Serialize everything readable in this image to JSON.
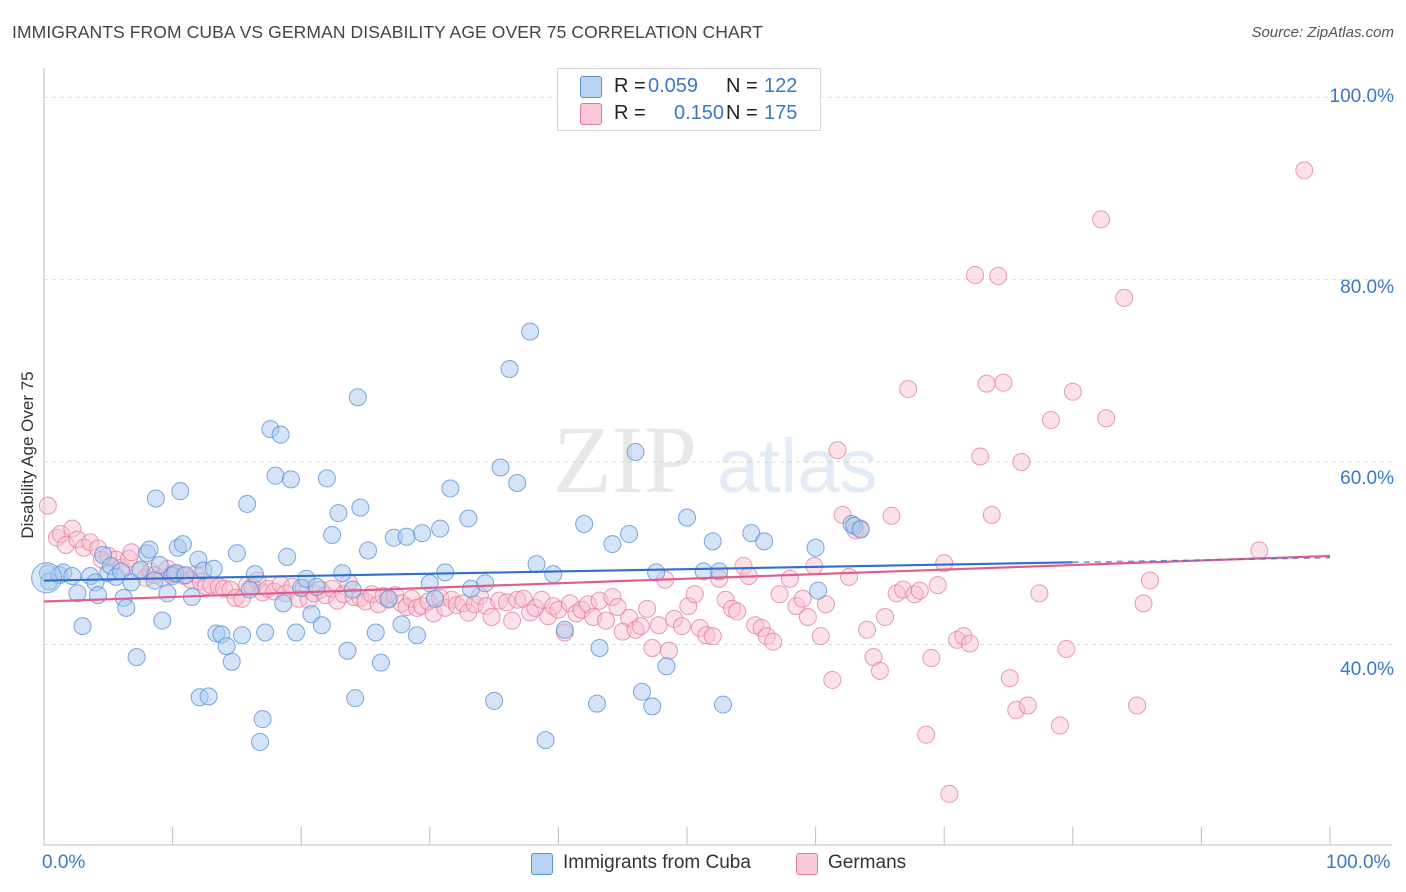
{
  "title": "IMMIGRANTS FROM CUBA VS GERMAN DISABILITY AGE OVER 75 CORRELATION CHART",
  "source": "Source: ZipAtlas.com",
  "watermark": {
    "zip": "ZIP",
    "atlas": "atlas"
  },
  "colors": {
    "blue_fill": "#a9c9ee",
    "blue_stroke": "#5b92d8",
    "blue_line": "#2f6fcf",
    "pink_fill": "#f7bfcf",
    "pink_stroke": "#e6799a",
    "pink_line": "#e05d8c",
    "grid": "#dcdcdc",
    "tick_label": "#3a78c9"
  },
  "legend": {
    "series": [
      {
        "r_label": "R =",
        "r_value": "0.059",
        "n_label": "N =",
        "n_value": "122"
      },
      {
        "r_label": "R =",
        "r_value": "0.150",
        "n_label": "N =",
        "n_value": "175"
      }
    ]
  },
  "bottom_legend": {
    "cuba": "Immigrants from Cuba",
    "germans": "Germans"
  },
  "chart_data": {
    "type": "scatter",
    "title": "IMMIGRANTS FROM CUBA VS GERMAN DISABILITY AGE OVER 75 CORRELATION CHART",
    "ylabel": "Disability Age Over 75",
    "xlabel": "",
    "x_tick_labels": [
      "0.0%",
      "100.0%"
    ],
    "y_tick_labels": [
      "100.0%",
      "80.0%",
      "60.0%",
      "40.0%"
    ],
    "xlim": [
      0,
      100
    ],
    "ylim": [
      18,
      102
    ],
    "grid": true,
    "legend_position": "top-center",
    "series": [
      {
        "name": "Immigrants from Cuba",
        "R": 0.059,
        "N": 122,
        "trend": {
          "x": [
            0,
            80
          ],
          "y": [
            47.0,
            49.0
          ]
        },
        "points": [
          [
            0.3,
            47.8
          ],
          [
            0.4,
            46.9
          ],
          [
            1.2,
            47.6
          ],
          [
            1.5,
            47.9
          ],
          [
            2.2,
            47.5
          ],
          [
            2.6,
            45.6
          ],
          [
            3.0,
            42.0
          ],
          [
            3.6,
            47.5
          ],
          [
            4.0,
            46.8
          ],
          [
            4.2,
            45.4
          ],
          [
            4.6,
            49.8
          ],
          [
            5.0,
            47.8
          ],
          [
            5.2,
            48.6
          ],
          [
            5.6,
            47.4
          ],
          [
            6.0,
            48.0
          ],
          [
            6.2,
            45.1
          ],
          [
            6.4,
            44.0
          ],
          [
            6.8,
            46.8
          ],
          [
            7.2,
            38.6
          ],
          [
            7.5,
            48.2
          ],
          [
            8.0,
            50.0
          ],
          [
            8.2,
            50.4
          ],
          [
            8.6,
            47.0
          ],
          [
            8.7,
            56.0
          ],
          [
            9.0,
            48.7
          ],
          [
            9.2,
            42.6
          ],
          [
            9.6,
            45.6
          ],
          [
            10.0,
            47.5
          ],
          [
            10.2,
            47.8
          ],
          [
            10.4,
            50.6
          ],
          [
            10.6,
            56.8
          ],
          [
            10.8,
            51.0
          ],
          [
            11.0,
            47.6
          ],
          [
            11.5,
            45.2
          ],
          [
            12.0,
            49.3
          ],
          [
            12.1,
            34.2
          ],
          [
            12.4,
            48.1
          ],
          [
            12.8,
            34.3
          ],
          [
            13.2,
            48.3
          ],
          [
            13.4,
            41.2
          ],
          [
            13.8,
            41.1
          ],
          [
            14.2,
            39.8
          ],
          [
            14.6,
            38.1
          ],
          [
            15.0,
            50.0
          ],
          [
            15.4,
            41.0
          ],
          [
            15.8,
            55.4
          ],
          [
            16.0,
            46.0
          ],
          [
            16.4,
            47.7
          ],
          [
            16.8,
            29.3
          ],
          [
            17.0,
            31.8
          ],
          [
            17.2,
            41.3
          ],
          [
            17.6,
            63.6
          ],
          [
            18.0,
            58.5
          ],
          [
            18.4,
            63.0
          ],
          [
            18.6,
            44.5
          ],
          [
            18.9,
            49.6
          ],
          [
            19.2,
            58.1
          ],
          [
            19.6,
            41.3
          ],
          [
            20.0,
            46.2
          ],
          [
            20.4,
            47.2
          ],
          [
            20.8,
            43.3
          ],
          [
            21.2,
            46.3
          ],
          [
            21.6,
            42.1
          ],
          [
            22.0,
            58.2
          ],
          [
            22.4,
            52.0
          ],
          [
            22.9,
            54.4
          ],
          [
            23.2,
            47.8
          ],
          [
            23.6,
            39.3
          ],
          [
            24.0,
            46.0
          ],
          [
            24.2,
            34.1
          ],
          [
            24.4,
            67.1
          ],
          [
            24.6,
            55.0
          ],
          [
            25.2,
            50.3
          ],
          [
            25.8,
            41.3
          ],
          [
            26.2,
            38.0
          ],
          [
            26.8,
            45.0
          ],
          [
            27.2,
            51.7
          ],
          [
            27.8,
            42.2
          ],
          [
            28.2,
            51.8
          ],
          [
            29.0,
            41.0
          ],
          [
            29.4,
            52.2
          ],
          [
            30.0,
            46.7
          ],
          [
            30.4,
            45.0
          ],
          [
            30.8,
            52.7
          ],
          [
            31.2,
            47.9
          ],
          [
            31.6,
            57.1
          ],
          [
            33.0,
            53.8
          ],
          [
            33.2,
            46.1
          ],
          [
            34.3,
            46.7
          ],
          [
            35.0,
            33.8
          ],
          [
            35.5,
            59.4
          ],
          [
            36.2,
            70.2
          ],
          [
            36.8,
            57.7
          ],
          [
            37.8,
            74.3
          ],
          [
            38.3,
            48.8
          ],
          [
            39.0,
            29.5
          ],
          [
            39.6,
            47.7
          ],
          [
            40.5,
            41.6
          ],
          [
            42.0,
            53.2
          ],
          [
            43.0,
            33.5
          ],
          [
            43.2,
            39.6
          ],
          [
            44.2,
            51.0
          ],
          [
            45.5,
            52.1
          ],
          [
            46.0,
            61.1
          ],
          [
            46.5,
            34.8
          ],
          [
            47.3,
            33.2
          ],
          [
            47.6,
            47.9
          ],
          [
            48.4,
            37.6
          ],
          [
            50.0,
            53.9
          ],
          [
            51.3,
            48.0
          ],
          [
            52.0,
            51.3
          ],
          [
            52.5,
            48.0
          ],
          [
            52.8,
            33.4
          ],
          [
            55.0,
            52.2
          ],
          [
            56.0,
            51.3
          ],
          [
            60.0,
            50.6
          ],
          [
            60.2,
            45.9
          ],
          [
            62.8,
            53.2
          ],
          [
            63.0,
            53.0
          ],
          [
            63.5,
            52.6
          ]
        ]
      },
      {
        "name": "Germans",
        "R": 0.15,
        "N": 175,
        "trend": {
          "x": [
            0,
            100
          ],
          "y": [
            44.7,
            49.7
          ]
        },
        "points": [
          [
            0.3,
            55.2
          ],
          [
            1.0,
            51.7
          ],
          [
            1.3,
            52.1
          ],
          [
            1.7,
            50.9
          ],
          [
            2.2,
            52.7
          ],
          [
            2.6,
            51.5
          ],
          [
            3.1,
            50.6
          ],
          [
            3.6,
            51.2
          ],
          [
            4.2,
            50.5
          ],
          [
            4.5,
            49.3
          ],
          [
            5.0,
            49.7
          ],
          [
            5.6,
            49.3
          ],
          [
            6.0,
            48.4
          ],
          [
            6.6,
            49.4
          ],
          [
            6.8,
            50.1
          ],
          [
            7.4,
            48.0
          ],
          [
            7.9,
            47.3
          ],
          [
            8.3,
            48.0
          ],
          [
            8.6,
            47.6
          ],
          [
            9.2,
            47.3
          ],
          [
            9.6,
            48.3
          ],
          [
            10.0,
            47.7
          ],
          [
            10.4,
            47.8
          ],
          [
            10.9,
            47.5
          ],
          [
            11.4,
            47.1
          ],
          [
            11.8,
            47.7
          ],
          [
            12.2,
            46.9
          ],
          [
            12.6,
            46.4
          ],
          [
            13.0,
            46.5
          ],
          [
            13.6,
            46.3
          ],
          [
            14.0,
            46.1
          ],
          [
            14.5,
            46.0
          ],
          [
            14.9,
            45.1
          ],
          [
            15.4,
            45.0
          ],
          [
            15.8,
            46.5
          ],
          [
            16.2,
            46.3
          ],
          [
            16.6,
            47.0
          ],
          [
            17.0,
            45.7
          ],
          [
            17.4,
            46.1
          ],
          [
            17.9,
            45.8
          ],
          [
            18.4,
            46.6
          ],
          [
            18.8,
            45.6
          ],
          [
            19.3,
            46.3
          ],
          [
            19.8,
            45.0
          ],
          [
            20.2,
            46.2
          ],
          [
            20.6,
            44.9
          ],
          [
            21.0,
            45.6
          ],
          [
            21.5,
            46.0
          ],
          [
            21.9,
            45.4
          ],
          [
            22.4,
            46.1
          ],
          [
            22.8,
            44.8
          ],
          [
            23.3,
            45.5
          ],
          [
            23.7,
            46.8
          ],
          [
            24.1,
            45.2
          ],
          [
            24.6,
            45.1
          ],
          [
            25.0,
            44.7
          ],
          [
            25.5,
            45.5
          ],
          [
            26.0,
            44.4
          ],
          [
            26.4,
            45.3
          ],
          [
            26.8,
            44.9
          ],
          [
            27.3,
            45.4
          ],
          [
            27.8,
            44.5
          ],
          [
            28.2,
            44.1
          ],
          [
            28.6,
            45.0
          ],
          [
            29.0,
            44.0
          ],
          [
            29.4,
            44.2
          ],
          [
            29.9,
            44.7
          ],
          [
            30.3,
            43.4
          ],
          [
            30.8,
            45.1
          ],
          [
            31.2,
            44.0
          ],
          [
            31.7,
            44.9
          ],
          [
            32.1,
            44.3
          ],
          [
            32.6,
            44.5
          ],
          [
            33.0,
            43.5
          ],
          [
            33.5,
            44.4
          ],
          [
            33.9,
            45.3
          ],
          [
            34.4,
            44.2
          ],
          [
            34.8,
            43.0
          ],
          [
            35.4,
            44.8
          ],
          [
            36.0,
            44.6
          ],
          [
            36.4,
            42.6
          ],
          [
            36.8,
            44.9
          ],
          [
            37.3,
            45.0
          ],
          [
            37.8,
            43.5
          ],
          [
            38.2,
            44.0
          ],
          [
            38.7,
            44.9
          ],
          [
            39.2,
            43.1
          ],
          [
            39.6,
            44.2
          ],
          [
            40.0,
            43.8
          ],
          [
            40.5,
            41.3
          ],
          [
            40.9,
            44.5
          ],
          [
            41.4,
            43.4
          ],
          [
            41.8,
            43.8
          ],
          [
            42.3,
            44.4
          ],
          [
            42.7,
            43.0
          ],
          [
            43.2,
            44.8
          ],
          [
            43.7,
            42.6
          ],
          [
            44.2,
            45.2
          ],
          [
            44.6,
            44.1
          ],
          [
            45.0,
            41.4
          ],
          [
            45.5,
            42.9
          ],
          [
            46.0,
            41.6
          ],
          [
            46.4,
            42.0
          ],
          [
            46.9,
            43.9
          ],
          [
            47.3,
            39.6
          ],
          [
            47.8,
            42.1
          ],
          [
            48.3,
            47.1
          ],
          [
            48.6,
            39.3
          ],
          [
            49.0,
            42.8
          ],
          [
            49.6,
            42.0
          ],
          [
            50.1,
            44.2
          ],
          [
            50.6,
            45.5
          ],
          [
            51.0,
            41.8
          ],
          [
            51.5,
            41.0
          ],
          [
            52.0,
            40.9
          ],
          [
            52.5,
            47.2
          ],
          [
            53.0,
            44.9
          ],
          [
            53.5,
            43.9
          ],
          [
            53.9,
            43.6
          ],
          [
            54.4,
            48.6
          ],
          [
            54.8,
            47.5
          ],
          [
            55.3,
            42.1
          ],
          [
            55.8,
            41.8
          ],
          [
            56.2,
            40.9
          ],
          [
            56.7,
            40.3
          ],
          [
            57.2,
            45.5
          ],
          [
            58.0,
            47.2
          ],
          [
            58.5,
            44.2
          ],
          [
            59.0,
            45.0
          ],
          [
            59.4,
            43.0
          ],
          [
            59.9,
            48.6
          ],
          [
            60.4,
            40.9
          ],
          [
            60.8,
            44.4
          ],
          [
            61.3,
            36.1
          ],
          [
            61.7,
            61.3
          ],
          [
            62.1,
            54.2
          ],
          [
            62.6,
            47.4
          ],
          [
            63.1,
            52.5
          ],
          [
            63.5,
            52.7
          ],
          [
            64.0,
            41.6
          ],
          [
            64.5,
            38.6
          ],
          [
            65.0,
            37.1
          ],
          [
            65.4,
            43.0
          ],
          [
            65.9,
            54.1
          ],
          [
            66.3,
            45.6
          ],
          [
            66.8,
            46.0
          ],
          [
            67.2,
            68.0
          ],
          [
            67.7,
            45.5
          ],
          [
            68.1,
            45.9
          ],
          [
            68.6,
            30.1
          ],
          [
            69.0,
            38.5
          ],
          [
            69.5,
            46.5
          ],
          [
            70.0,
            48.9
          ],
          [
            70.4,
            23.6
          ],
          [
            71.0,
            40.5
          ],
          [
            71.5,
            40.9
          ],
          [
            72.0,
            40.1
          ],
          [
            72.4,
            80.5
          ],
          [
            72.8,
            60.6
          ],
          [
            73.3,
            68.6
          ],
          [
            73.7,
            54.2
          ],
          [
            74.2,
            80.4
          ],
          [
            74.6,
            68.7
          ],
          [
            75.1,
            36.3
          ],
          [
            75.6,
            32.8
          ],
          [
            76.0,
            60.0
          ],
          [
            76.5,
            33.3
          ],
          [
            77.4,
            45.6
          ],
          [
            78.3,
            64.6
          ],
          [
            79.0,
            31.1
          ],
          [
            79.5,
            39.5
          ],
          [
            80.0,
            67.7
          ],
          [
            82.2,
            86.6
          ],
          [
            82.6,
            64.8
          ],
          [
            84.0,
            78.0
          ],
          [
            85.0,
            33.3
          ],
          [
            85.5,
            44.5
          ],
          [
            86.0,
            47.0
          ],
          [
            94.5,
            50.3
          ],
          [
            98.0,
            92.0
          ]
        ]
      }
    ]
  }
}
